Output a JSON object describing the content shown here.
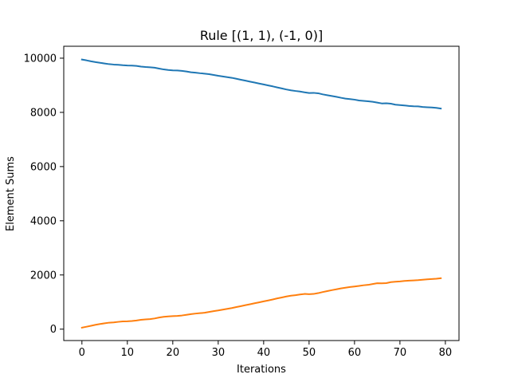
{
  "chart_data": {
    "type": "line",
    "title": "Rule [(1, 1), (-1, 0)]",
    "xlabel": "Iterations",
    "ylabel": "Element Sums",
    "xlim": [
      -4,
      83
    ],
    "ylim": [
      -420,
      10440
    ],
    "xticks": [
      0,
      10,
      20,
      30,
      40,
      50,
      60,
      70,
      80
    ],
    "yticks": [
      0,
      2000,
      4000,
      6000,
      8000,
      10000
    ],
    "xtick_labels": [
      "0",
      "10",
      "20",
      "30",
      "40",
      "50",
      "60",
      "70",
      "80"
    ],
    "ytick_labels": [
      "0",
      "2000",
      "4000",
      "6000",
      "8000",
      "10000"
    ],
    "grid": false,
    "x": [
      0,
      1,
      2,
      3,
      4,
      5,
      6,
      7,
      8,
      9,
      10,
      11,
      12,
      13,
      14,
      15,
      16,
      17,
      18,
      19,
      20,
      21,
      22,
      23,
      24,
      25,
      26,
      27,
      28,
      29,
      30,
      31,
      32,
      33,
      34,
      35,
      36,
      37,
      38,
      39,
      40,
      41,
      42,
      43,
      44,
      45,
      46,
      47,
      48,
      49,
      50,
      51,
      52,
      53,
      54,
      55,
      56,
      57,
      58,
      59,
      60,
      61,
      62,
      63,
      64,
      65,
      66,
      67,
      68,
      69,
      70,
      71,
      72,
      73,
      74,
      75,
      76,
      77,
      78,
      79
    ],
    "series": [
      {
        "color": "#1f77b4",
        "values": [
          9950,
          9920,
          9885,
          9855,
          9830,
          9805,
          9780,
          9765,
          9755,
          9740,
          9730,
          9725,
          9715,
          9690,
          9675,
          9665,
          9650,
          9615,
          9585,
          9565,
          9550,
          9545,
          9530,
          9510,
          9480,
          9465,
          9445,
          9430,
          9410,
          9380,
          9350,
          9325,
          9300,
          9275,
          9240,
          9205,
          9170,
          9135,
          9100,
          9065,
          9030,
          8995,
          8960,
          8920,
          8885,
          8845,
          8815,
          8790,
          8770,
          8740,
          8715,
          8720,
          8705,
          8665,
          8635,
          8605,
          8575,
          8540,
          8510,
          8490,
          8470,
          8440,
          8425,
          8410,
          8390,
          8360,
          8330,
          8335,
          8320,
          8285,
          8270,
          8255,
          8235,
          8225,
          8220,
          8200,
          8190,
          8180,
          8165,
          8140
        ]
      },
      {
        "color": "#ff7f0e",
        "values": [
          55,
          90,
          125,
          160,
          190,
          215,
          240,
          250,
          270,
          285,
          290,
          300,
          320,
          345,
          360,
          370,
          395,
          430,
          455,
          470,
          480,
          490,
          505,
          530,
          555,
          575,
          590,
          605,
          635,
          665,
          690,
          720,
          750,
          780,
          815,
          850,
          885,
          920,
          955,
          990,
          1025,
          1060,
          1095,
          1135,
          1170,
          1205,
          1235,
          1255,
          1280,
          1300,
          1290,
          1300,
          1330,
          1370,
          1405,
          1440,
          1470,
          1505,
          1530,
          1555,
          1575,
          1595,
          1620,
          1635,
          1665,
          1695,
          1690,
          1700,
          1735,
          1750,
          1760,
          1780,
          1790,
          1800,
          1810,
          1825,
          1840,
          1850,
          1860,
          1880
        ]
      }
    ]
  }
}
